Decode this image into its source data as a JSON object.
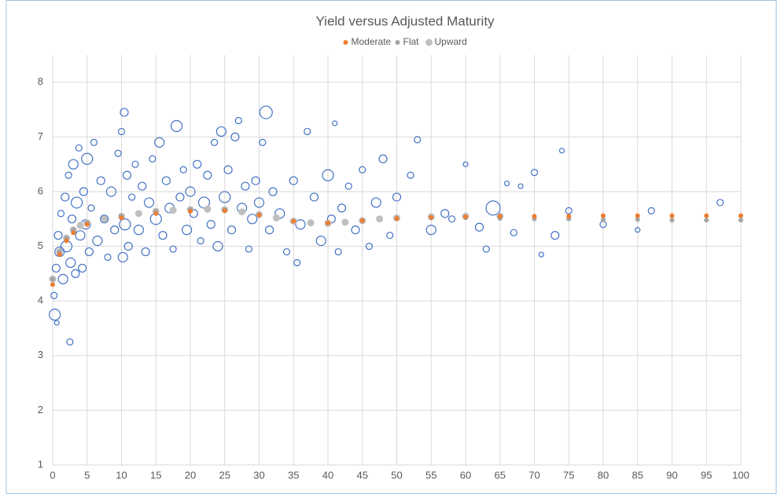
{
  "chart_data": {
    "type": "scatter",
    "title": "Yield versus Adjusted Maturity",
    "xlim": [
      0,
      100
    ],
    "ylim": [
      1,
      8.5
    ],
    "xticks": [
      0,
      5,
      10,
      15,
      20,
      25,
      30,
      35,
      40,
      45,
      50,
      55,
      60,
      65,
      70,
      75,
      80,
      85,
      90,
      95,
      100
    ],
    "yticks": [
      1,
      2,
      3,
      4,
      5,
      6,
      7,
      8
    ],
    "grid": true,
    "legend": "top",
    "bubbles": {
      "color": "#4472c4",
      "x": [
        0.2,
        0.3,
        0.5,
        0.6,
        0.8,
        1,
        1.2,
        1.5,
        1.8,
        2,
        2.3,
        2.5,
        2.6,
        2.8,
        3,
        3.3,
        3.5,
        3.8,
        4,
        4.3,
        4.5,
        4.8,
        5,
        5.3,
        5.6,
        6,
        6.5,
        7,
        7.5,
        8,
        8.5,
        9,
        9.5,
        10,
        10.2,
        10.4,
        10.5,
        10.8,
        11,
        11.5,
        12,
        12.5,
        13,
        13.5,
        14,
        14.5,
        15,
        15.5,
        16,
        16.5,
        17,
        17.5,
        18,
        18.5,
        19,
        19.5,
        20,
        20.5,
        21,
        21.5,
        22,
        22.5,
        23,
        23.5,
        24,
        24.5,
        25,
        25.5,
        26,
        26.5,
        27,
        27.5,
        28,
        28.5,
        29,
        29.5,
        30,
        30.5,
        31,
        31.5,
        32,
        33,
        34,
        35,
        35.5,
        36,
        37,
        38,
        39,
        40,
        40.5,
        41,
        41.5,
        42,
        43,
        44,
        45,
        46,
        47,
        48,
        49,
        50,
        52,
        53,
        55,
        57,
        58,
        60,
        62,
        63,
        64,
        66,
        67,
        68,
        70,
        71,
        73,
        74,
        75,
        80,
        85,
        87,
        97
      ],
      "values": [
        4.1,
        3.75,
        4.6,
        3.6,
        5.2,
        4.9,
        5.6,
        4.4,
        5.9,
        5.0,
        6.3,
        3.25,
        4.7,
        5.5,
        6.5,
        4.5,
        5.8,
        6.8,
        5.2,
        4.6,
        6.0,
        5.4,
        6.6,
        4.9,
        5.7,
        6.9,
        5.1,
        6.2,
        5.5,
        4.8,
        6.0,
        5.3,
        6.7,
        7.1,
        4.8,
        7.45,
        5.4,
        6.3,
        5.0,
        5.9,
        6.5,
        5.3,
        6.1,
        4.9,
        5.8,
        6.6,
        5.5,
        6.9,
        5.2,
        6.2,
        5.7,
        4.95,
        7.2,
        5.9,
        6.4,
        5.3,
        6.0,
        5.6,
        6.5,
        5.1,
        5.8,
        6.3,
        5.4,
        6.9,
        5.0,
        7.1,
        5.9,
        6.4,
        5.3,
        7.0,
        7.3,
        5.7,
        6.1,
        4.95,
        5.5,
        6.2,
        5.8,
        6.9,
        7.45,
        5.3,
        6.0,
        5.6,
        4.9,
        6.2,
        4.7,
        5.4,
        7.1,
        5.9,
        5.1,
        6.3,
        5.5,
        7.25,
        4.9,
        5.7,
        6.1,
        5.3,
        6.4,
        5.0,
        5.8,
        6.6,
        5.2,
        5.9,
        6.3,
        6.95,
        5.3,
        5.6,
        5.5,
        6.5,
        5.35,
        4.95,
        5.7,
        6.15,
        5.25,
        6.1,
        6.35,
        4.85,
        5.2,
        6.75,
        5.65,
        5.4,
        5.3,
        5.65,
        5.8
      ],
      "sizes": [
        4,
        7,
        5,
        3,
        5,
        6,
        4,
        6,
        5,
        7,
        4,
        4,
        6,
        5,
        6,
        5,
        7,
        4,
        6,
        5,
        5,
        6,
        7,
        5,
        4,
        4,
        6,
        5,
        5,
        4,
        6,
        5,
        4,
        4,
        6,
        5,
        7,
        5,
        5,
        4,
        4,
        6,
        5,
        5,
        6,
        4,
        7,
        6,
        5,
        5,
        6,
        4,
        7,
        5,
        4,
        6,
        6,
        5,
        5,
        4,
        7,
        5,
        5,
        4,
        6,
        6,
        7,
        5,
        5,
        5,
        4,
        6,
        5,
        4,
        6,
        5,
        6,
        4,
        8,
        5,
        5,
        6,
        4,
        5,
        4,
        6,
        4,
        5,
        6,
        7,
        5,
        3,
        4,
        5,
        4,
        5,
        4,
        4,
        6,
        5,
        4,
        5,
        4,
        4,
        6,
        5,
        4,
        3,
        5,
        4,
        9,
        3,
        4,
        3,
        4,
        3,
        5,
        3,
        4,
        4,
        3,
        4,
        4
      ]
    },
    "series": [
      {
        "name": "Moderate",
        "color": "#ed7d31",
        "marker": 3,
        "x": [
          0,
          1,
          2,
          3,
          5,
          10,
          15,
          20,
          25,
          30,
          35,
          40,
          45,
          50,
          55,
          60,
          65,
          70,
          75,
          80,
          85,
          90,
          95,
          100
        ],
        "values": [
          4.3,
          4.85,
          5.1,
          5.25,
          5.4,
          5.52,
          5.6,
          5.64,
          5.65,
          5.57,
          5.46,
          5.43,
          5.47,
          5.51,
          5.53,
          5.54,
          5.55,
          5.55,
          5.55,
          5.56,
          5.56,
          5.56,
          5.56,
          5.56
        ]
      },
      {
        "name": "Flat",
        "color": "#a5a5a5",
        "marker": 3,
        "x": [
          0,
          1,
          2,
          3,
          5,
          10,
          15,
          20,
          25,
          30,
          35,
          40,
          45,
          50,
          55,
          60,
          65,
          70,
          75,
          80,
          85,
          90,
          95,
          100
        ],
        "values": [
          4.4,
          4.9,
          5.15,
          5.3,
          5.43,
          5.55,
          5.64,
          5.67,
          5.67,
          5.58,
          5.46,
          5.42,
          5.46,
          5.5,
          5.52,
          5.52,
          5.51,
          5.5,
          5.5,
          5.49,
          5.49,
          5.48,
          5.48,
          5.48
        ]
      },
      {
        "name": "Upward",
        "color": "#bfbfbf",
        "marker": 4.5,
        "x": [
          0,
          1,
          2,
          3,
          4,
          5,
          7.5,
          10,
          12.5,
          15,
          17.5,
          20,
          22.5,
          25,
          27.5,
          30,
          32.5,
          35,
          37.5,
          40,
          42.5,
          45,
          47.5,
          50,
          55,
          60,
          65
        ],
        "values": [
          4.4,
          4.9,
          5.15,
          5.3,
          5.38,
          5.43,
          5.5,
          5.55,
          5.6,
          5.64,
          5.66,
          5.67,
          5.68,
          5.67,
          5.63,
          5.58,
          5.52,
          5.46,
          5.43,
          5.42,
          5.44,
          5.47,
          5.5,
          5.52,
          5.54,
          5.55,
          5.55
        ]
      }
    ]
  }
}
